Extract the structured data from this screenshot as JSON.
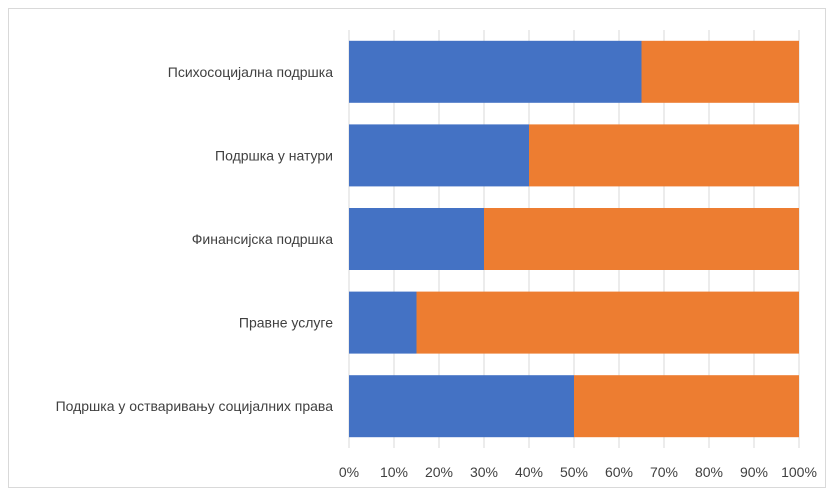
{
  "chart_data": {
    "type": "bar",
    "orientation": "horizontal",
    "stacked": true,
    "percent_stacked": true,
    "categories": [
      "Подршка у остваривању социјалних права",
      "Правне услуге",
      "Финансијска подршка",
      "Подршка у натури",
      "Психосоцијална подршка"
    ],
    "series": [
      {
        "values": [
          50,
          15,
          30,
          40,
          65
        ],
        "color": "#4472C4"
      },
      {
        "values": [
          50,
          85,
          70,
          60,
          35
        ],
        "color": "#ED7D31"
      }
    ],
    "x_ticks": [
      "0%",
      "10%",
      "20%",
      "30%",
      "40%",
      "50%",
      "60%",
      "70%",
      "80%",
      "90%",
      "100%"
    ],
    "xlim": [
      0,
      100
    ],
    "grid": "vertical",
    "legend": "none"
  }
}
